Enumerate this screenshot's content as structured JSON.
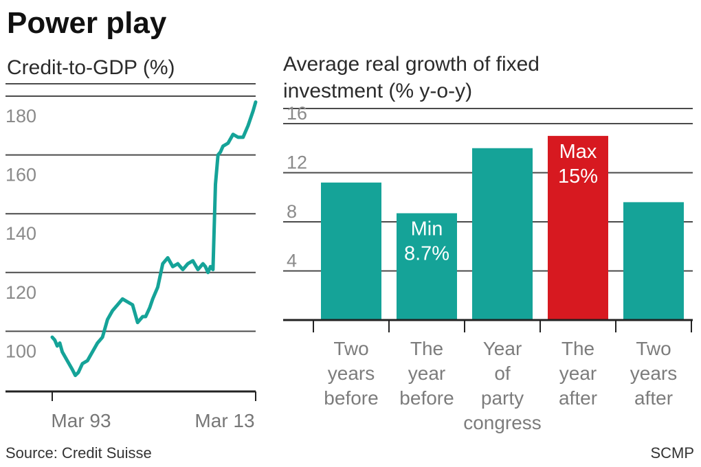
{
  "title": "Power play",
  "source": "Source: Credit Suisse",
  "credit": "SCMP",
  "colors": {
    "teal": "#15A398",
    "red": "#D71920",
    "grid": "#4a4a4a",
    "axis": "#222222"
  },
  "chart_data": [
    {
      "type": "line",
      "title": "Credit-to-GDP (%)",
      "ylim": [
        80,
        180
      ],
      "yticks": [
        100,
        120,
        140,
        160,
        180
      ],
      "xticks": [
        "Mar 93",
        "Mar 13"
      ],
      "xlim": [
        1993.0,
        2013.25
      ],
      "grid": true,
      "series": [
        {
          "x": [
            1993.0,
            1993.25,
            1993.5,
            1993.75,
            1994.0,
            1994.5,
            1995.0,
            1995.3,
            1995.6,
            1996.0,
            1996.5,
            1997.0,
            1997.5,
            1998.0,
            1998.5,
            1999.0,
            1999.5,
            2000.0,
            2000.5,
            2001.0,
            2001.5,
            2002.0,
            2002.3,
            2002.7,
            2003.0,
            2003.5,
            2004.0,
            2004.5,
            2005.0,
            2005.5,
            2006.0,
            2006.5,
            2007.0,
            2007.5,
            2008.0,
            2008.25,
            2008.5,
            2008.75,
            2009.0,
            2009.25,
            2009.5,
            2009.75,
            2010.0,
            2010.5,
            2011.0,
            2011.5,
            2012.0,
            2012.5,
            2013.0,
            2013.25
          ],
          "values": [
            98,
            97,
            95,
            96,
            93,
            90,
            87,
            85,
            86,
            89,
            90,
            93,
            96,
            98,
            104,
            107,
            109,
            111,
            110,
            109,
            103,
            105,
            105,
            108,
            111,
            115,
            123,
            125,
            122,
            123,
            121,
            123,
            124,
            121,
            123,
            122,
            120,
            122,
            121,
            150,
            160,
            161,
            163,
            164,
            167,
            166,
            166,
            170,
            175,
            178
          ]
        }
      ]
    },
    {
      "type": "bar",
      "title": "Average real growth of fixed investment (% y-o-y)",
      "ylim": [
        0,
        16
      ],
      "yticks": [
        4,
        8,
        12,
        16
      ],
      "categories": [
        [
          "Two",
          "years",
          "before"
        ],
        [
          "The",
          "year",
          "before"
        ],
        [
          "Year",
          "of",
          "party",
          "congress"
        ],
        [
          "The",
          "year",
          "after"
        ],
        [
          "Two",
          "years",
          "after"
        ]
      ],
      "values": [
        11.2,
        8.7,
        14.0,
        15.0,
        9.6
      ],
      "colors": [
        "#15A398",
        "#15A398",
        "#15A398",
        "#D71920",
        "#15A398"
      ],
      "annotations": [
        {
          "index": 1,
          "lines": [
            "Min",
            "8.7%"
          ]
        },
        {
          "index": 3,
          "lines": [
            "Max",
            "15%"
          ]
        }
      ],
      "grid": true
    }
  ]
}
